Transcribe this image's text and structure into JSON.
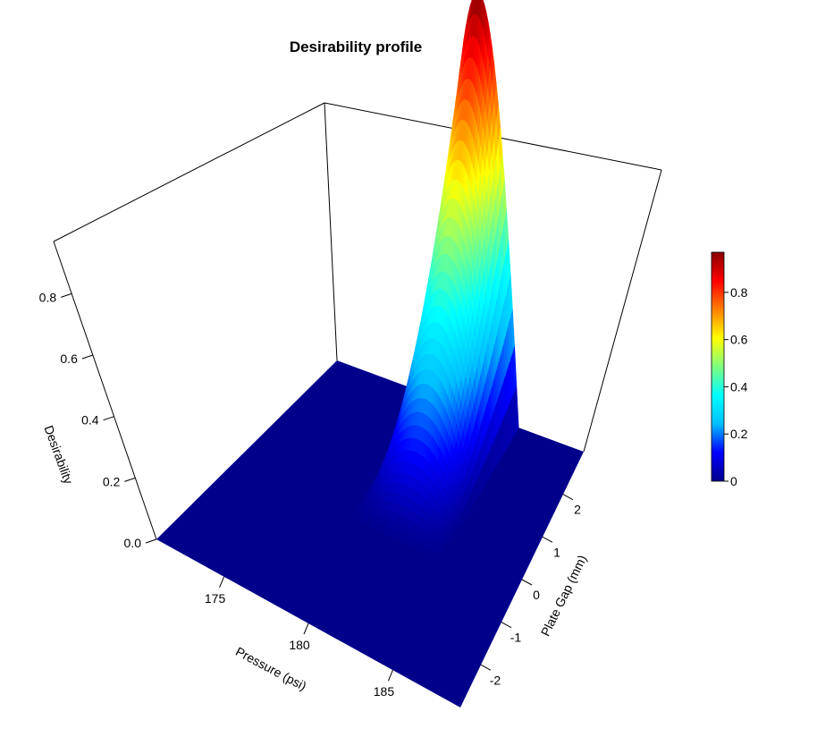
{
  "chart_data": {
    "type": "surface3d",
    "title": "Desirability profile",
    "x_axis": {
      "label": "Pressure (psi)",
      "range": [
        171,
        189
      ],
      "ticks": [
        175,
        180,
        185
      ]
    },
    "y_axis": {
      "label": "Plate Gap (mm)",
      "range": [
        -3,
        3
      ],
      "ticks": [
        -2,
        -1,
        0,
        1,
        2
      ]
    },
    "z_axis": {
      "label": "Desirability",
      "range": [
        0,
        0.97
      ],
      "ticks": [
        "0.0",
        "0.2",
        "0.4",
        "0.6",
        "0.8"
      ]
    },
    "colorbar": {
      "palette": "jet",
      "range": [
        0,
        0.97
      ],
      "ticks": [
        "0",
        "0.2",
        "0.4",
        "0.6",
        "0.8"
      ],
      "stops": [
        "#00008b",
        "#0000ff",
        "#00bfff",
        "#00ffff",
        "#7fff7f",
        "#ffff00",
        "#ff7f00",
        "#ff0000",
        "#8b0000"
      ]
    },
    "surface": {
      "description_values": {
        "peak_desirability": 0.97,
        "peak_pressure": 181.3,
        "peak_plate_gap": 3.0,
        "nonzero_pressure_range": [
          178.5,
          184.4
        ],
        "nonzero_plate_gap_range": [
          -0.5,
          3.0
        ],
        "background_value": 0
      }
    }
  }
}
